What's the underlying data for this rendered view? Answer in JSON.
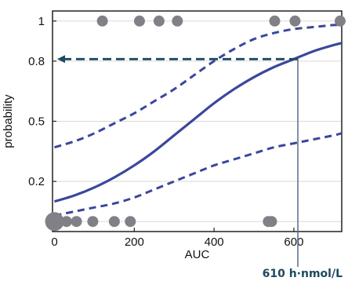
{
  "chart_data": {
    "type": "scatter",
    "title": "",
    "xlabel": "AUC",
    "ylabel": "probability",
    "xlim": [
      -5,
      720
    ],
    "ylim": [
      -0.05,
      1.05
    ],
    "xticks": [
      0,
      200,
      400,
      600
    ],
    "yticks": [
      0.2,
      0.5,
      0.8,
      1
    ],
    "ytick_labels": [
      "0.2",
      "0.5",
      "0.8",
      "1"
    ],
    "grid": true,
    "legend": "none",
    "series": [
      {
        "kind": "observations",
        "y": 1,
        "x": [
          120,
          213,
          262,
          308,
          552,
          603,
          716
        ]
      },
      {
        "kind": "observations",
        "y": 0,
        "x": [
          0,
          5,
          30,
          55,
          96,
          150,
          190,
          536,
          544
        ]
      },
      {
        "kind": "fit",
        "x": [
          0,
          50,
          100,
          150,
          200,
          250,
          300,
          350,
          400,
          450,
          500,
          550,
          600,
          650,
          700,
          720
        ],
        "y": [
          0.1,
          0.13,
          0.17,
          0.22,
          0.28,
          0.35,
          0.43,
          0.51,
          0.59,
          0.66,
          0.72,
          0.77,
          0.81,
          0.85,
          0.88,
          0.89
        ]
      },
      {
        "kind": "upper-ci",
        "x": [
          0,
          50,
          100,
          150,
          200,
          250,
          300,
          350,
          400,
          450,
          500,
          550,
          600,
          650,
          700,
          720
        ],
        "y": [
          0.37,
          0.4,
          0.44,
          0.49,
          0.54,
          0.6,
          0.66,
          0.73,
          0.8,
          0.86,
          0.91,
          0.94,
          0.96,
          0.97,
          0.98,
          0.98
        ]
      },
      {
        "kind": "lower-ci",
        "x": [
          0,
          50,
          100,
          150,
          200,
          250,
          300,
          350,
          400,
          450,
          500,
          550,
          600,
          650,
          700,
          720
        ],
        "y": [
          0.03,
          0.05,
          0.07,
          0.09,
          0.12,
          0.16,
          0.2,
          0.24,
          0.28,
          0.31,
          0.34,
          0.37,
          0.39,
          0.41,
          0.43,
          0.44
        ]
      }
    ],
    "annotation": {
      "label": "610 h·nmol/L",
      "x": 610,
      "y": 0.81
    },
    "colors": {
      "fit": "#3a479c",
      "arrow": "#1d4a5f",
      "marker": "#808086",
      "vline": "#5a6c8c",
      "annotation_text": "#1d4a5f",
      "grid": "#d9d9d9"
    }
  }
}
